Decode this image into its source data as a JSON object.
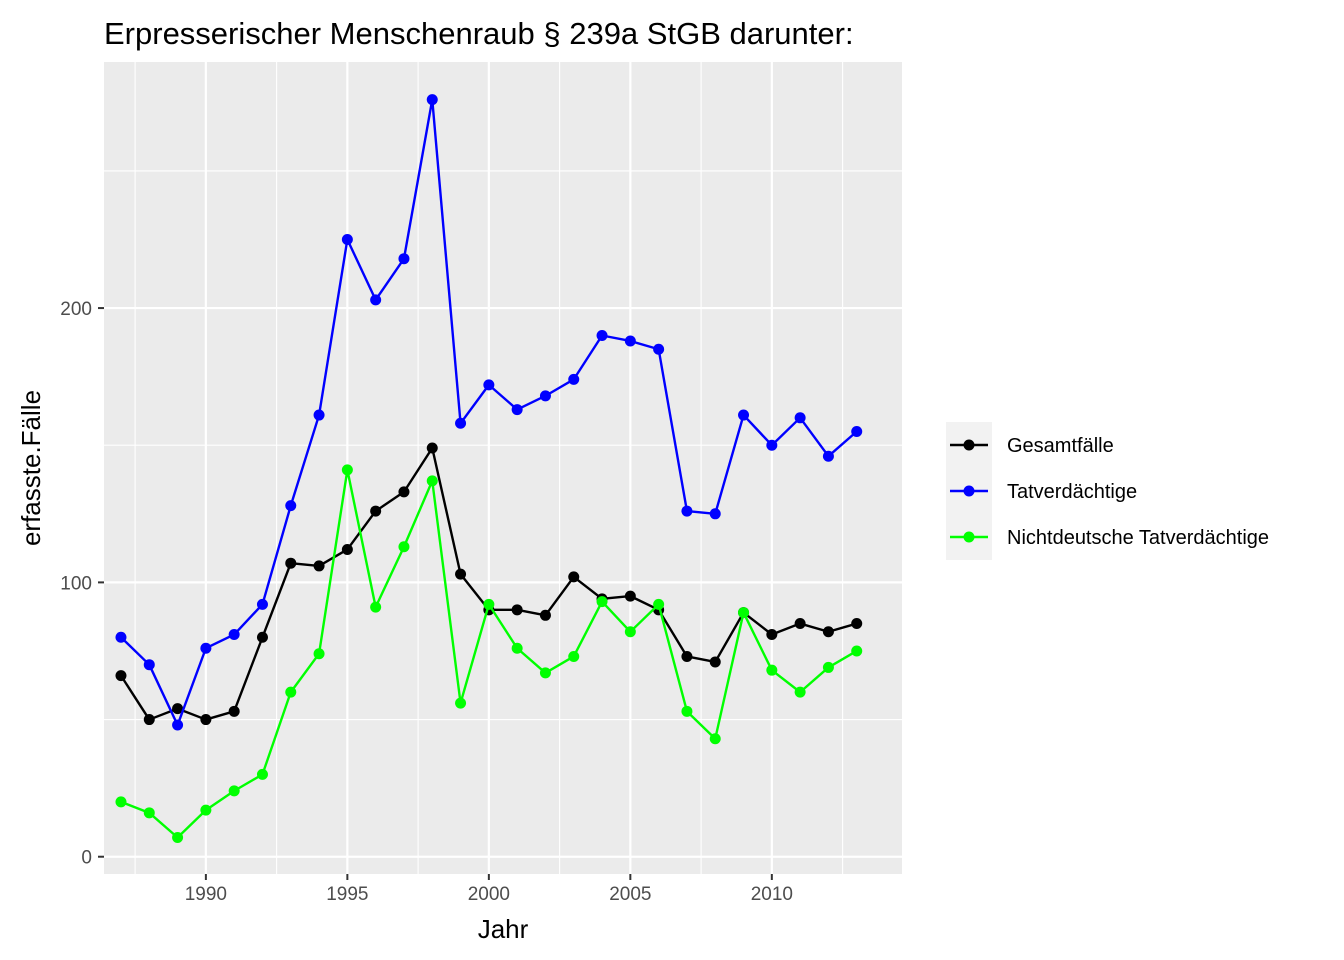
{
  "chart_data": {
    "type": "line",
    "title": "Erpresserischer Menschenraub § 239a StGB darunter:",
    "xlabel": "Jahr",
    "ylabel": "erfasste.Fälle",
    "x": [
      1987,
      1988,
      1989,
      1990,
      1991,
      1992,
      1993,
      1994,
      1995,
      1996,
      1997,
      1998,
      1999,
      2000,
      2001,
      2002,
      2003,
      2004,
      2005,
      2006,
      2007,
      2008,
      2009,
      2010,
      2011,
      2012,
      2013
    ],
    "xlim": [
      1986.4,
      2014.6
    ],
    "ylim": [
      -6.3,
      289.7
    ],
    "x_ticks": [
      1990,
      1995,
      2000,
      2005,
      2010
    ],
    "y_ticks": [
      0,
      100,
      200
    ],
    "grid": true,
    "legend_position": "right",
    "series": [
      {
        "name": "Gesamtfälle",
        "color": "#000000",
        "values": [
          66,
          50,
          54,
          50,
          53,
          80,
          107,
          106,
          112,
          126,
          133,
          149,
          103,
          90,
          90,
          88,
          102,
          94,
          95,
          90,
          73,
          71,
          89,
          81,
          85,
          82,
          85
        ]
      },
      {
        "name": "Tatverdächtige",
        "color": "#0000ff",
        "values": [
          80,
          70,
          48,
          76,
          81,
          92,
          128,
          161,
          225,
          203,
          218,
          276,
          158,
          172,
          163,
          168,
          174,
          190,
          188,
          185,
          126,
          125,
          161,
          150,
          160,
          146,
          155
        ]
      },
      {
        "name": "Nichtdeutsche Tatverdächtige",
        "color": "#00ff00",
        "values": [
          20,
          16,
          7,
          17,
          24,
          30,
          60,
          74,
          141,
          91,
          113,
          137,
          56,
          92,
          76,
          67,
          73,
          93,
          82,
          92,
          53,
          43,
          89,
          68,
          60,
          69,
          75
        ]
      }
    ]
  }
}
